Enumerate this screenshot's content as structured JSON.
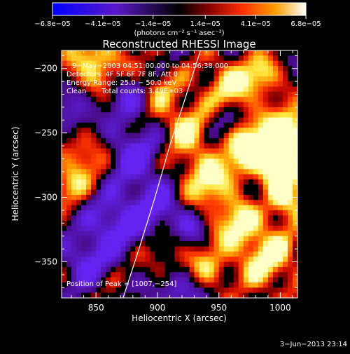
{
  "chart_data": {
    "type": "heatmap",
    "title": "Reconstructed RHESSI Image",
    "xlabel": "Heliocentric X (arcsec)",
    "ylabel": "Heliocentric Y (arcsec)",
    "xlim": [
      822,
      1014
    ],
    "ylim": [
      -378,
      -186
    ],
    "x_ticks": [
      {
        "value": 850,
        "label": "850"
      },
      {
        "value": 900,
        "label": "900"
      },
      {
        "value": 950,
        "label": "950"
      },
      {
        "value": 1000,
        "label": "1000"
      }
    ],
    "y_ticks": [
      {
        "value": -200,
        "label": "−200"
      },
      {
        "value": -250,
        "label": "−250"
      },
      {
        "value": -300,
        "label": "−300"
      },
      {
        "value": -350,
        "label": "−350"
      }
    ],
    "colorbar": {
      "min": -6.8e-05,
      "max": 6.8e-05,
      "ticks": [
        {
          "value": -6.8e-05,
          "label": "−6.8e−05"
        },
        {
          "value": -4.1e-05,
          "label": "−4.1e−05"
        },
        {
          "value": -1.4e-05,
          "label": "−1.4e−05"
        },
        {
          "value": 1.4e-05,
          "label": "1.4e−05"
        },
        {
          "value": 4.1e-05,
          "label": "4.1e−05"
        },
        {
          "value": 6.8e-05,
          "label": "6.8e−05"
        }
      ],
      "units_label": "(photons cm⁻² s⁻¹ asec⁻²)"
    },
    "peak": {
      "x": 1007,
      "y": -254
    },
    "limb_curve": [
      {
        "x": 872,
        "y": -378
      },
      {
        "x": 885,
        "y": -340
      },
      {
        "x": 898,
        "y": -300
      },
      {
        "x": 910,
        "y": -260
      },
      {
        "x": 922,
        "y": -225
      },
      {
        "x": 932,
        "y": -195
      },
      {
        "x": 935,
        "y": -186
      }
    ],
    "colors": {
      "limb": "#ffffff",
      "background": "#000000"
    }
  },
  "overlay_text": {
    "time_range": "9−May−2003 04:51:00.000 to 04:56:38.000",
    "detectors": "Detectors: 4F 5F 6F 7F 8F, Att 0",
    "energy": "Energy Range: 25.0 − 50.0 keV",
    "clean": "Clean",
    "total_counts": "Total counts: 3.49E+03",
    "peak": "Position of Peak = [1007,−254]"
  },
  "footer": {
    "date": "3−Jun−2013 23:14"
  }
}
